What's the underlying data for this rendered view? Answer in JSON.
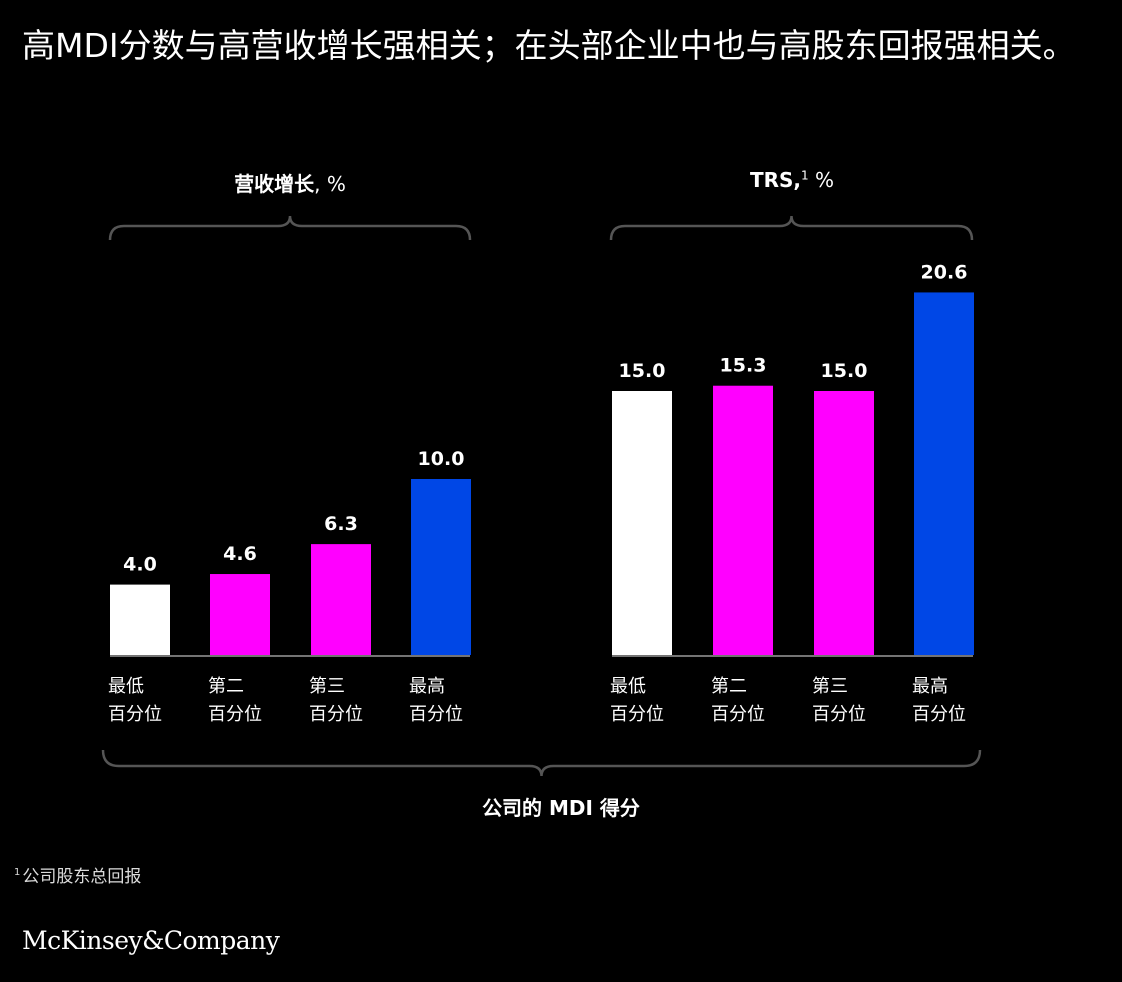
{
  "title": "高MDI分数与高营收增长强相关；在头部企业中也与高股东回报强相关。",
  "x_axis_label": "公司的 MDI 得分",
  "footnote": {
    "marker": "1",
    "text": "公司股东总回报"
  },
  "logo_text": "McKinsey&Company",
  "colors": {
    "background": "#000000",
    "white": "#ffffff",
    "magenta": "#ff00ff",
    "blue": "#0047e6",
    "axis": "#9a9a9a",
    "brace": "#555555"
  },
  "chart_data": [
    {
      "type": "bar",
      "title_bold": "营收增长",
      "title_unit": ", %",
      "title_sup": "",
      "categories": [
        "最低\n百分位",
        "第二\n百分位",
        "第三\n百分位",
        "最高\n百分位"
      ],
      "values": [
        4.0,
        4.6,
        6.3,
        10.0
      ],
      "value_labels": [
        "4.0",
        "4.6",
        "6.3",
        "10.0"
      ],
      "bar_colors": [
        "#ffffff",
        "#ff00ff",
        "#ff00ff",
        "#0047e6"
      ],
      "ylim": [
        0,
        25
      ],
      "grid": false
    },
    {
      "type": "bar",
      "title_bold": "TRS,",
      "title_unit": " %",
      "title_sup": "1",
      "categories": [
        "最低\n百分位",
        "第二\n百分位",
        "第三\n百分位",
        "最高\n百分位"
      ],
      "values": [
        15.0,
        15.3,
        15.0,
        20.6
      ],
      "value_labels": [
        "15.0",
        "15.3",
        "15.0",
        "20.6"
      ],
      "bar_colors": [
        "#ffffff",
        "#ff00ff",
        "#ff00ff",
        "#0047e6"
      ],
      "ylim": [
        0,
        25
      ],
      "grid": false
    }
  ]
}
